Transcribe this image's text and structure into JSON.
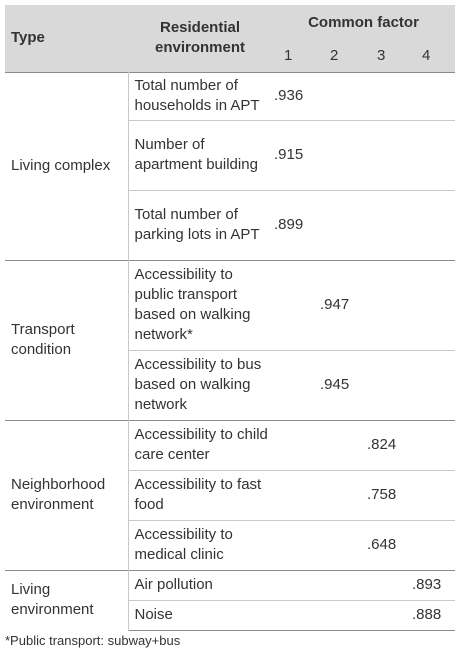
{
  "header": {
    "type": "Type",
    "environment": "Residential environment",
    "common_factor": "Common factor",
    "factors": [
      "1",
      "2",
      "3",
      "4"
    ]
  },
  "groups": [
    {
      "type": "Living complex",
      "rows": [
        {
          "environment": "Total number of households in APT",
          "loadings": [
            ".936",
            null,
            null,
            null
          ]
        },
        {
          "environment": "Number of apartment building",
          "loadings": [
            ".915",
            null,
            null,
            null
          ]
        },
        {
          "environment": "Total number of parking lots in APT",
          "loadings": [
            ".899",
            null,
            null,
            null
          ]
        }
      ]
    },
    {
      "type": "Transport condition",
      "rows": [
        {
          "environment": "Accessibility to public transport based on walking network*",
          "loadings": [
            null,
            ".947",
            null,
            null
          ]
        },
        {
          "environment": "Accessibility to bus based on walking network",
          "loadings": [
            null,
            ".945",
            null,
            null
          ]
        }
      ]
    },
    {
      "type": "Neighborhood environment",
      "rows": [
        {
          "environment": "Accessibility to child care center",
          "loadings": [
            null,
            null,
            ".824",
            null
          ]
        },
        {
          "environment": "Accessibility to fast food",
          "loadings": [
            null,
            null,
            ".758",
            null
          ]
        },
        {
          "environment": "Accessibility to medical clinic",
          "loadings": [
            null,
            null,
            ".648",
            null
          ]
        }
      ]
    },
    {
      "type": "Living environment",
      "rows": [
        {
          "environment": "Air pollution",
          "loadings": [
            null,
            null,
            null,
            ".893"
          ]
        },
        {
          "environment": "Noise",
          "loadings": [
            null,
            null,
            null,
            ".888"
          ]
        }
      ]
    }
  ],
  "footnote": "*Public transport: subway+bus"
}
